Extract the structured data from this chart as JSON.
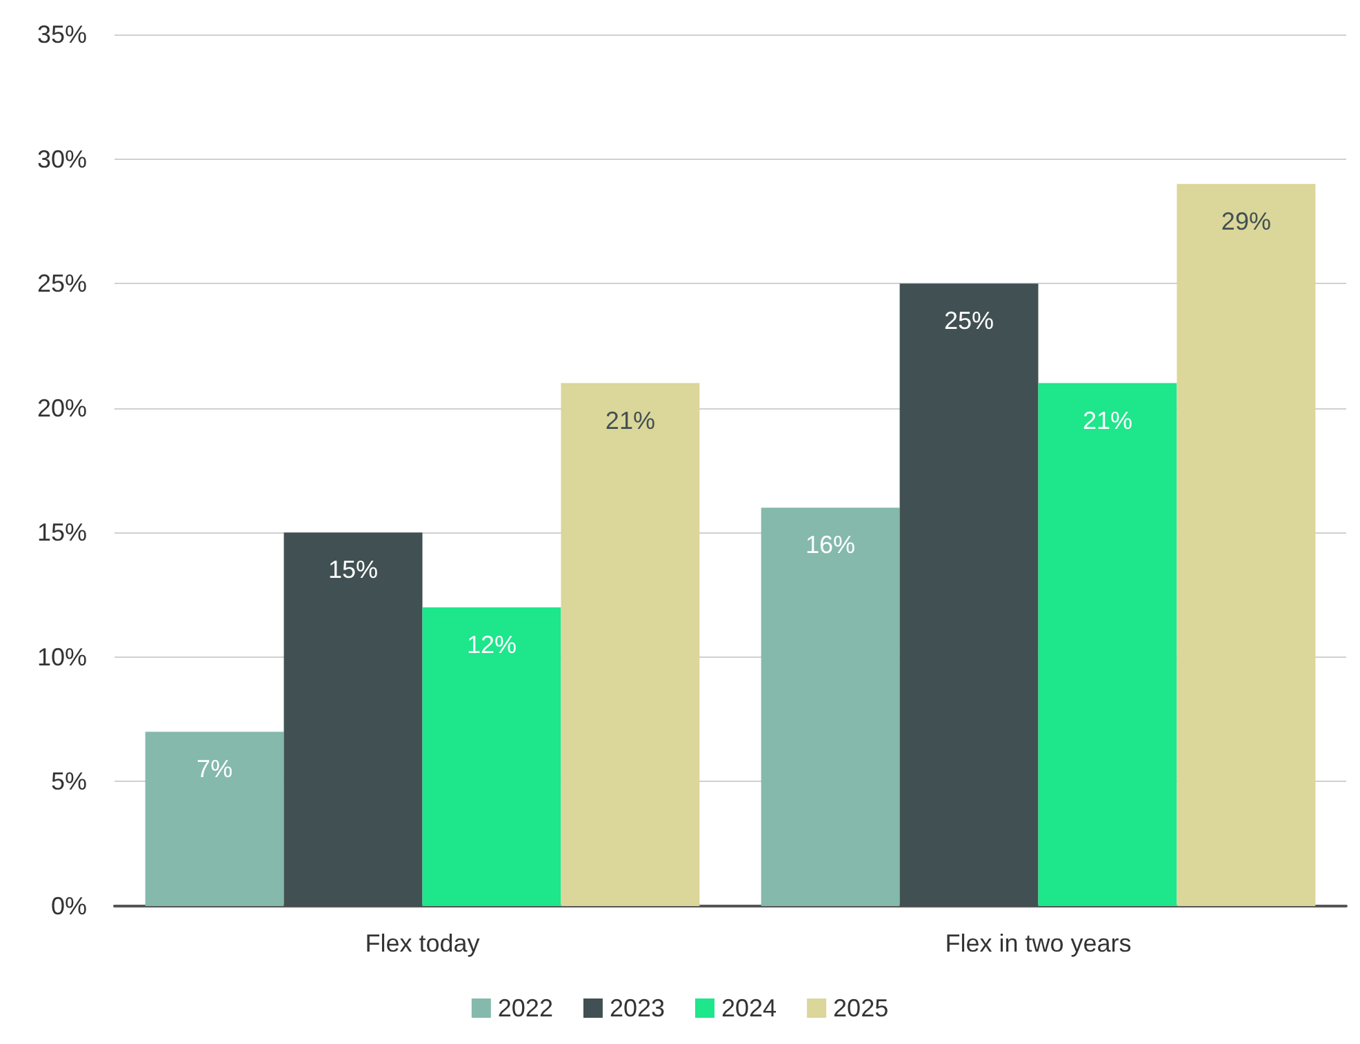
{
  "chart_data": {
    "type": "bar",
    "categories": [
      "Flex today",
      "Flex in two years"
    ],
    "series": [
      {
        "name": "2022",
        "color": "#84b9ab",
        "values": [
          7,
          16
        ],
        "value_labels": [
          "7%",
          "16%"
        ]
      },
      {
        "name": "2023",
        "color": "#415052",
        "values": [
          15,
          25
        ],
        "value_labels": [
          "15%",
          "25%"
        ]
      },
      {
        "name": "2024",
        "color": "#1de68b",
        "values": [
          12,
          21
        ],
        "value_labels": [
          "12%",
          "21%"
        ]
      },
      {
        "name": "2025",
        "color": "#dbd699",
        "values": [
          21,
          29
        ],
        "value_labels": [
          "21%",
          "29%"
        ]
      }
    ],
    "ylim": [
      0,
      35
    ],
    "yticks": [
      {
        "value": 0,
        "label": "0%"
      },
      {
        "value": 5,
        "label": "5%"
      },
      {
        "value": 10,
        "label": "10%"
      },
      {
        "value": 15,
        "label": "15%"
      },
      {
        "value": 20,
        "label": "20%"
      },
      {
        "value": 25,
        "label": "25%"
      },
      {
        "value": 30,
        "label": "30%"
      },
      {
        "value": 35,
        "label": "35%"
      }
    ],
    "grid": "y",
    "legend": "bottom"
  }
}
